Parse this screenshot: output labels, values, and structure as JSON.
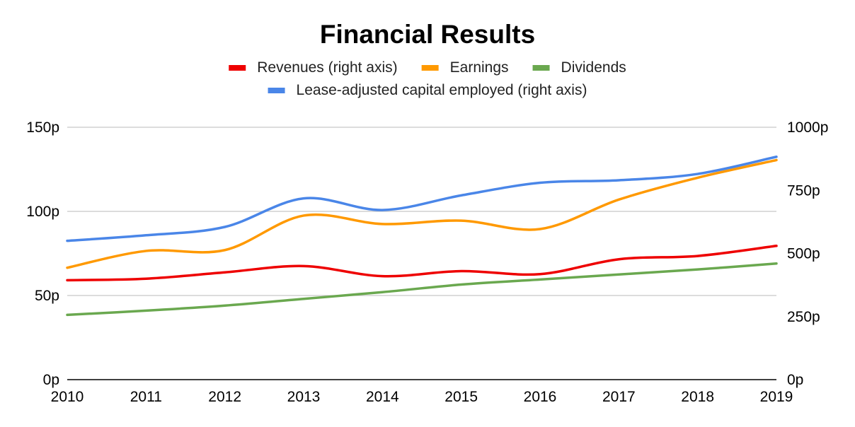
{
  "chart_data": {
    "type": "line",
    "title": "Financial Results",
    "x": [
      "2010",
      "2011",
      "2012",
      "2013",
      "2014",
      "2015",
      "2016",
      "2017",
      "2018",
      "2019"
    ],
    "y_left": {
      "range": [
        0,
        150
      ],
      "ticks": [
        "0p",
        "50p",
        "100p",
        "150p"
      ],
      "tick_values": [
        0,
        50,
        100,
        150
      ]
    },
    "y_right": {
      "range": [
        0,
        1000
      ],
      "ticks": [
        "0p",
        "250p",
        "500p",
        "750p",
        "1000p"
      ],
      "tick_values": [
        0,
        250,
        500,
        750,
        1000
      ]
    },
    "grid": true,
    "legend_position": "top",
    "series": [
      {
        "name": "Revenues (right axis)",
        "axis": "right",
        "color": "#ee0000",
        "values": [
          394,
          400,
          425,
          450,
          410,
          430,
          418,
          477,
          490,
          530
        ]
      },
      {
        "name": "Earnings",
        "axis": "left",
        "color": "#ff9900",
        "values": [
          66.5,
          76.5,
          77,
          97.5,
          92.5,
          94.5,
          89.5,
          107,
          120,
          130.5
        ]
      },
      {
        "name": "Dividends",
        "axis": "left",
        "color": "#6aa84f",
        "values": [
          38.5,
          41,
          44,
          48,
          52,
          56.5,
          59.5,
          62.5,
          65.5,
          69
        ]
      },
      {
        "name": "Lease-adjusted capital employed (right axis)",
        "axis": "right",
        "color": "#4a86e8",
        "values": [
          550,
          572,
          605,
          718,
          672,
          730,
          780,
          790,
          815,
          883
        ]
      }
    ]
  }
}
